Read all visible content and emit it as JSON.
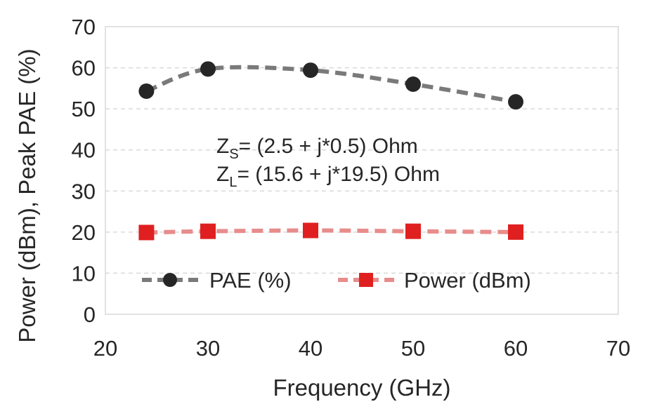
{
  "chart_data": {
    "type": "line",
    "xlabel": "Frequency (GHz)",
    "ylabel": "Power (dBm), Peak PAE (%)",
    "xlim": [
      20,
      70
    ],
    "ylim": [
      0,
      70
    ],
    "xticks": [
      "20",
      "30",
      "40",
      "50",
      "60",
      "70"
    ],
    "yticks": [
      "0",
      "10",
      "20",
      "30",
      "40",
      "50",
      "60",
      "70"
    ],
    "grid": "horizontal-dashed",
    "legend_position": "bottom",
    "series": [
      {
        "name": "PAE (%)",
        "marker": "circle",
        "line": "dashed",
        "color": "#7a7a7a",
        "marker_color": "#262626",
        "x": [
          24,
          30,
          40,
          50,
          60
        ],
        "y": [
          54.3,
          59.7,
          59.4,
          56.0,
          51.7
        ]
      },
      {
        "name": "Power (dBm)",
        "marker": "square",
        "line": "dashed",
        "color": "#e88c8c",
        "marker_color": "#e02020",
        "x": [
          24,
          30,
          40,
          50,
          60
        ],
        "y": [
          19.9,
          20.2,
          20.4,
          20.2,
          20.0
        ]
      }
    ],
    "annotations": [
      {
        "main": "Z",
        "sub": "S",
        "rest": "= (2.5 + j*0.5) Ohm"
      },
      {
        "main": "Z",
        "sub": "L",
        "rest": "= (15.6 + j*19.5) Ohm"
      }
    ]
  }
}
